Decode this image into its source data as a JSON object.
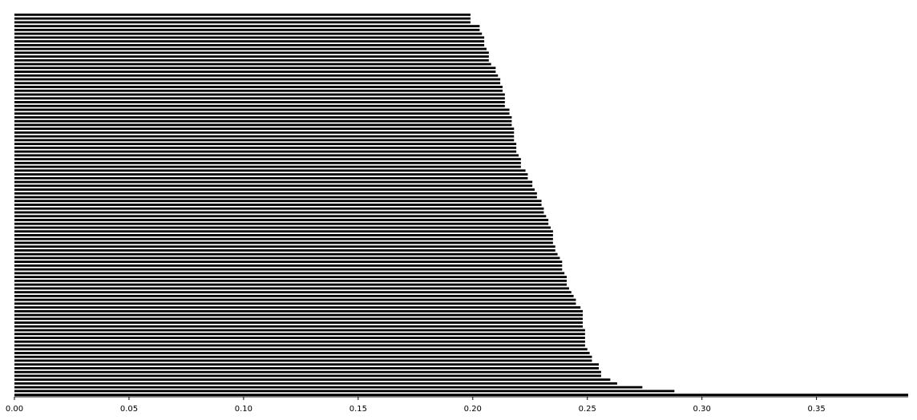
{
  "chart_data": {
    "type": "bar",
    "orientation": "horizontal",
    "title": "",
    "xlabel": "",
    "ylabel": "",
    "xlim": [
      0,
      0.39
    ],
    "xticks": [
      "0.00",
      "0.05",
      "0.10",
      "0.15",
      "0.20",
      "0.25",
      "0.30",
      "0.35"
    ],
    "ytick_labels_visible": false,
    "grid": false,
    "legend": "none",
    "bar_color": "#000000",
    "background_color": "#ffffff",
    "values_top_to_bottom": [
      0.199,
      0.199,
      0.199,
      0.203,
      0.203,
      0.204,
      0.205,
      0.205,
      0.205,
      0.206,
      0.207,
      0.207,
      0.207,
      0.208,
      0.21,
      0.21,
      0.211,
      0.212,
      0.212,
      0.213,
      0.213,
      0.214,
      0.214,
      0.214,
      0.214,
      0.216,
      0.216,
      0.217,
      0.217,
      0.217,
      0.218,
      0.218,
      0.218,
      0.218,
      0.219,
      0.219,
      0.219,
      0.22,
      0.221,
      0.221,
      0.221,
      0.223,
      0.224,
      0.224,
      0.226,
      0.226,
      0.227,
      0.228,
      0.228,
      0.23,
      0.23,
      0.231,
      0.231,
      0.232,
      0.233,
      0.233,
      0.234,
      0.235,
      0.235,
      0.235,
      0.235,
      0.236,
      0.236,
      0.237,
      0.238,
      0.239,
      0.239,
      0.239,
      0.24,
      0.241,
      0.241,
      0.241,
      0.242,
      0.243,
      0.244,
      0.245,
      0.245,
      0.247,
      0.248,
      0.248,
      0.248,
      0.248,
      0.248,
      0.249,
      0.249,
      0.249,
      0.249,
      0.249,
      0.25,
      0.251,
      0.252,
      0.252,
      0.255,
      0.255,
      0.256,
      0.256,
      0.26,
      0.263,
      0.274,
      0.288,
      0.39
    ]
  }
}
